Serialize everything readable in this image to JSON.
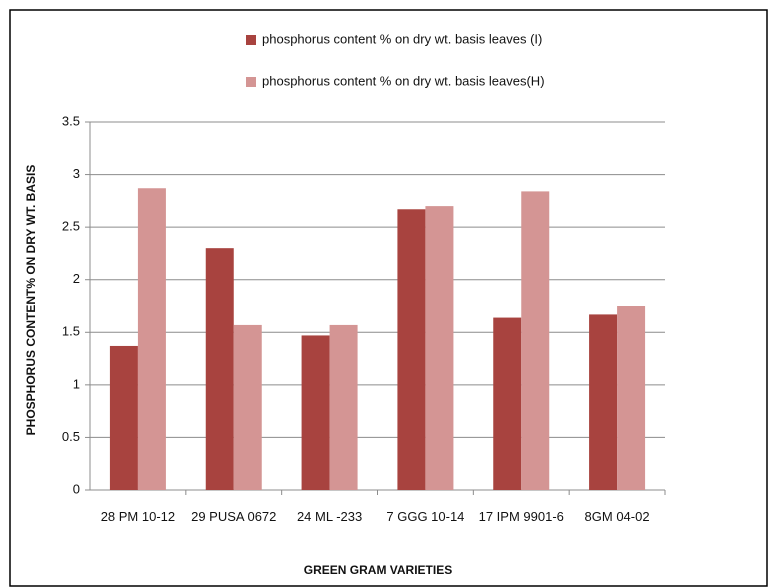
{
  "chart_data": {
    "type": "bar",
    "x_label": "GREEN GRAM VARIETIES",
    "y_label": "PHOSPHORUS CONTENT% ON DRY WT. BASIS",
    "categories": [
      "28 PM 10-12",
      "29 PUSA 0672",
      "24 ML -233",
      "7 GGG 10-14",
      "17 IPM 9901-6",
      "8GM 04-02"
    ],
    "series": [
      {
        "name": "phosphorus content % on dry wt. basis leaves (I)",
        "color": "#a8433f",
        "values": [
          1.37,
          2.3,
          1.47,
          2.67,
          1.64,
          1.67
        ]
      },
      {
        "name": "phosphorus content % on dry wt. basis leaves(H)",
        "color": "#d49594",
        "values": [
          2.87,
          1.57,
          1.57,
          2.7,
          2.84,
          1.75
        ]
      }
    ],
    "ylim": [
      0,
      3.5
    ],
    "yticks": [
      0,
      0.5,
      1,
      1.5,
      2,
      2.5,
      3,
      3.5
    ],
    "grid": true
  }
}
